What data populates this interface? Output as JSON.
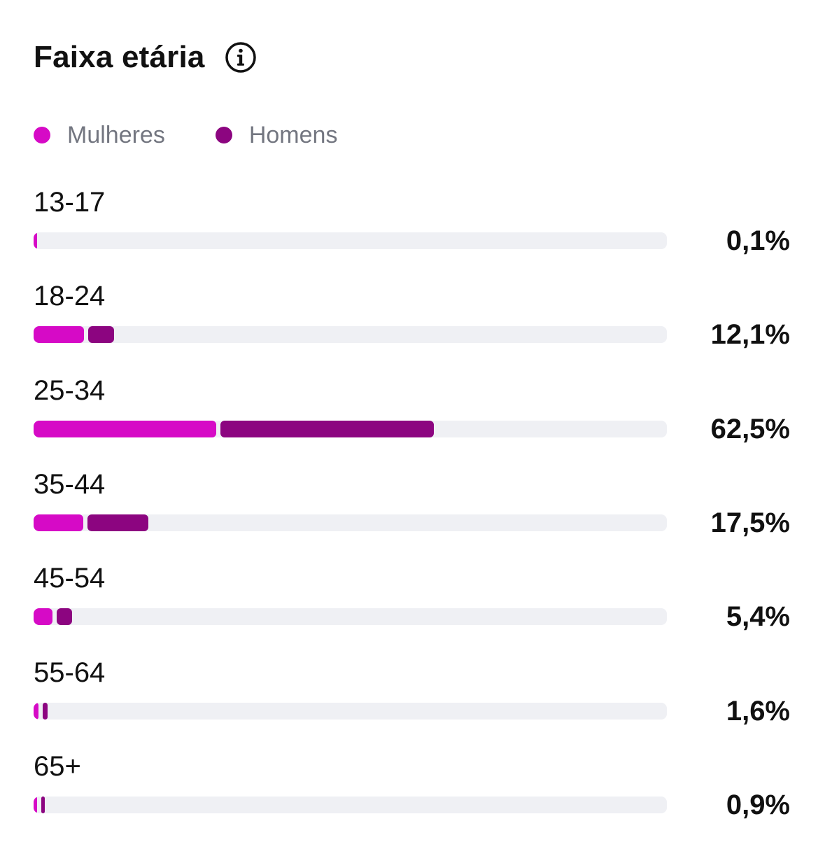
{
  "title": "Faixa etária",
  "info_icon": "info-circle-icon",
  "colors": {
    "women": "#d60ac6",
    "men": "#8c0580",
    "track": "#eff0f4"
  },
  "legend": [
    {
      "label": "Mulheres",
      "color": "#d60ac6"
    },
    {
      "label": "Homens",
      "color": "#8c0580"
    }
  ],
  "chart_data": {
    "type": "bar",
    "stacked": true,
    "orientation": "horizontal",
    "title": "Faixa etária",
    "categories": [
      "13-17",
      "18-24",
      "25-34",
      "35-44",
      "45-54",
      "55-64",
      "65+"
    ],
    "value_labels": [
      "0,1%",
      "12,1%",
      "62,5%",
      "17,5%",
      "5,4%",
      "1,6%",
      "0,9%"
    ],
    "totals": [
      0.1,
      12.1,
      62.5,
      17.5,
      5.4,
      1.6,
      0.9
    ],
    "series": [
      {
        "name": "Mulheres",
        "values": [
          0.1,
          8.0,
          28.8,
          7.9,
          3.0,
          0.8,
          0.4
        ]
      },
      {
        "name": "Homens",
        "values": [
          0.0,
          4.1,
          33.7,
          9.6,
          2.4,
          0.8,
          0.5
        ]
      }
    ],
    "xlim": [
      0,
      100
    ],
    "legend_position": "top-left",
    "grid": false
  }
}
